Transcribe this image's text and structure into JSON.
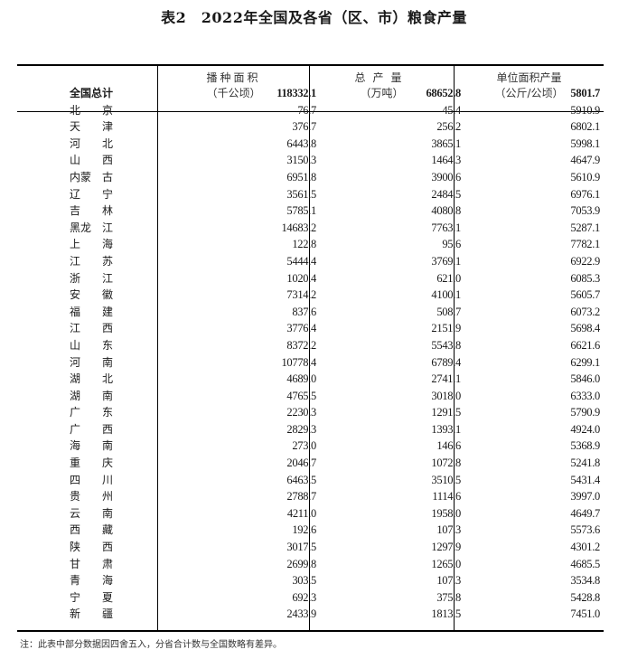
{
  "title": "表2　2022年全国及各省（区、市）粮食产量",
  "headers": [
    {
      "line1": "播种面积",
      "line2": "（千公顷）"
    },
    {
      "line1": "总产量",
      "line2": "（万吨）"
    },
    {
      "line1": "单位面积产量",
      "line2": "（公斤/公顷）"
    }
  ],
  "total": {
    "name": "全国总计",
    "area": "118332.1",
    "output": "68652.8",
    "yield": "5801.7"
  },
  "rows": [
    {
      "a": "北",
      "b": "京",
      "area": "76.7",
      "output": "45.4",
      "yield": "5910.9"
    },
    {
      "a": "天",
      "b": "津",
      "area": "376.7",
      "output": "256.2",
      "yield": "6802.1"
    },
    {
      "a": "河",
      "b": "北",
      "area": "6443.8",
      "output": "3865.1",
      "yield": "5998.1"
    },
    {
      "a": "山",
      "b": "西",
      "area": "3150.3",
      "output": "1464.3",
      "yield": "4647.9"
    },
    {
      "a": "内蒙",
      "b": "古",
      "area": "6951.8",
      "output": "3900.6",
      "yield": "5610.9"
    },
    {
      "a": "辽",
      "b": "宁",
      "area": "3561.5",
      "output": "2484.5",
      "yield": "6976.1"
    },
    {
      "a": "吉",
      "b": "林",
      "area": "5785.1",
      "output": "4080.8",
      "yield": "7053.9"
    },
    {
      "a": "黑龙",
      "b": "江",
      "area": "14683.2",
      "output": "7763.1",
      "yield": "5287.1"
    },
    {
      "a": "上",
      "b": "海",
      "area": "122.8",
      "output": "95.6",
      "yield": "7782.1"
    },
    {
      "a": "江",
      "b": "苏",
      "area": "5444.4",
      "output": "3769.1",
      "yield": "6922.9"
    },
    {
      "a": "浙",
      "b": "江",
      "area": "1020.4",
      "output": "621.0",
      "yield": "6085.3"
    },
    {
      "a": "安",
      "b": "徽",
      "area": "7314.2",
      "output": "4100.1",
      "yield": "5605.7"
    },
    {
      "a": "福",
      "b": "建",
      "area": "837.6",
      "output": "508.7",
      "yield": "6073.2"
    },
    {
      "a": "江",
      "b": "西",
      "area": "3776.4",
      "output": "2151.9",
      "yield": "5698.4"
    },
    {
      "a": "山",
      "b": "东",
      "area": "8372.2",
      "output": "5543.8",
      "yield": "6621.6"
    },
    {
      "a": "河",
      "b": "南",
      "area": "10778.4",
      "output": "6789.4",
      "yield": "6299.1"
    },
    {
      "a": "湖",
      "b": "北",
      "area": "4689.0",
      "output": "2741.1",
      "yield": "5846.0"
    },
    {
      "a": "湖",
      "b": "南",
      "area": "4765.5",
      "output": "3018.0",
      "yield": "6333.0"
    },
    {
      "a": "广",
      "b": "东",
      "area": "2230.3",
      "output": "1291.5",
      "yield": "5790.9"
    },
    {
      "a": "广",
      "b": "西",
      "area": "2829.3",
      "output": "1393.1",
      "yield": "4924.0"
    },
    {
      "a": "海",
      "b": "南",
      "area": "273.0",
      "output": "146.6",
      "yield": "5368.9"
    },
    {
      "a": "重",
      "b": "庆",
      "area": "2046.7",
      "output": "1072.8",
      "yield": "5241.8"
    },
    {
      "a": "四",
      "b": "川",
      "area": "6463.5",
      "output": "3510.5",
      "yield": "5431.4"
    },
    {
      "a": "贵",
      "b": "州",
      "area": "2788.7",
      "output": "1114.6",
      "yield": "3997.0"
    },
    {
      "a": "云",
      "b": "南",
      "area": "4211.0",
      "output": "1958.0",
      "yield": "4649.7"
    },
    {
      "a": "西",
      "b": "藏",
      "area": "192.6",
      "output": "107.3",
      "yield": "5573.6"
    },
    {
      "a": "陕",
      "b": "西",
      "area": "3017.5",
      "output": "1297.9",
      "yield": "4301.2"
    },
    {
      "a": "甘",
      "b": "肃",
      "area": "2699.8",
      "output": "1265.0",
      "yield": "4685.5"
    },
    {
      "a": "青",
      "b": "海",
      "area": "303.5",
      "output": "107.3",
      "yield": "3534.8"
    },
    {
      "a": "宁",
      "b": "夏",
      "area": "692.3",
      "output": "375.8",
      "yield": "5428.8"
    },
    {
      "a": "新",
      "b": "疆",
      "area": "2433.9",
      "output": "1813.5",
      "yield": "7451.0"
    }
  ],
  "note": "注：此表中部分数据因四舍五入，分省合计数与全国数略有差异。"
}
